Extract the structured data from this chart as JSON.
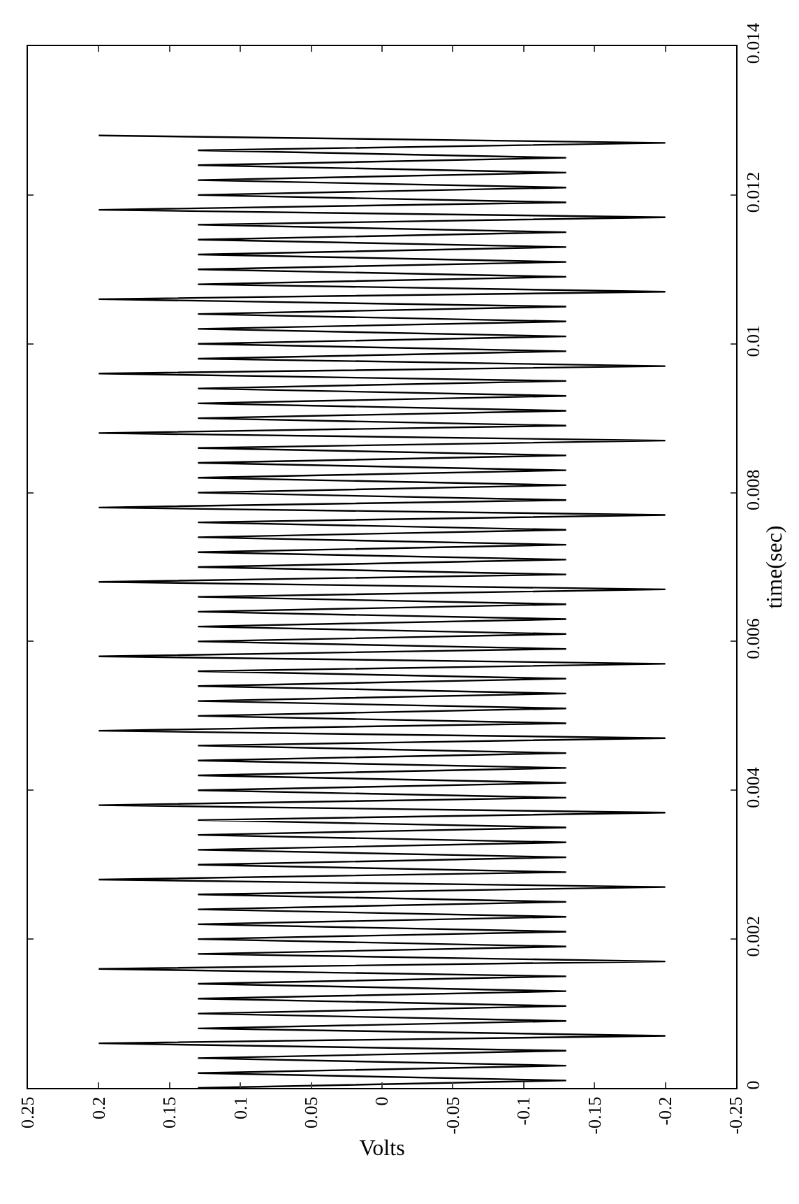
{
  "chart_data": {
    "type": "line",
    "xlabel": "Volts",
    "ylabel": "time(sec)",
    "values": [
      0,
      0.0001,
      0.0002,
      0.0003,
      0.0004,
      0.0005,
      0.0006,
      0.0007,
      0.0008,
      0.0009,
      0.001,
      0.0011,
      0.0012,
      0.0013,
      0.0014,
      0.0015,
      0.0016,
      0.0017,
      0.0018,
      0.0019,
      0.002,
      0.0021,
      0.0022,
      0.0023,
      0.0024,
      0.0025,
      0.0026,
      0.0027,
      0.0028,
      0.0029,
      0.003,
      0.0031,
      0.0032,
      0.0033,
      0.0034,
      0.0035,
      0.0036,
      0.0037,
      0.0038,
      0.0039,
      0.004,
      0.0041,
      0.0042,
      0.0043,
      0.0044,
      0.0045,
      0.0046,
      0.0047,
      0.0048,
      0.0049,
      0.005,
      0.0051,
      0.0052,
      0.0053,
      0.0054,
      0.0055,
      0.0056,
      0.0057,
      0.0058,
      0.0059,
      0.006,
      0.0061,
      0.0062,
      0.0063,
      0.0064,
      0.0065,
      0.0066,
      0.0067,
      0.0068,
      0.0069,
      0.007,
      0.0071,
      0.0072,
      0.0073,
      0.0074,
      0.0075,
      0.0076,
      0.0077,
      0.0078,
      0.0079,
      0.008,
      0.0081,
      0.0082,
      0.0083,
      0.0084,
      0.0085,
      0.0086,
      0.0087,
      0.0088,
      0.0089,
      0.009,
      0.0091,
      0.0092,
      0.0093,
      0.0094,
      0.0095,
      0.0096,
      0.0097,
      0.0098,
      0.0099,
      0.01,
      0.0101,
      0.0102,
      0.0103,
      0.0104,
      0.0105,
      0.0106,
      0.0107,
      0.0108,
      0.0109,
      0.011,
      0.0111,
      0.0112,
      0.0113,
      0.0114,
      0.0115,
      0.0116,
      0.0117,
      0.0118,
      0.0119,
      0.012,
      0.0121,
      0.0122,
      0.0123,
      0.0124,
      0.0125,
      0.0126,
      0.0127,
      0.0128
    ],
    "x": [
      0.13,
      -0.13,
      0.13,
      -0.13,
      0.13,
      -0.13,
      0.2,
      -0.2,
      0.13,
      -0.13,
      0.13,
      -0.13,
      0.13,
      -0.13,
      0.13,
      -0.13,
      0.2,
      -0.2,
      0.13,
      -0.13,
      0.13,
      -0.13,
      0.13,
      -0.13,
      0.13,
      -0.13,
      0.13,
      -0.2,
      0.2,
      -0.13,
      0.13,
      -0.13,
      0.13,
      -0.13,
      0.13,
      -0.13,
      0.13,
      -0.2,
      0.2,
      -0.13,
      0.13,
      -0.13,
      0.13,
      -0.13,
      0.13,
      -0.13,
      0.13,
      -0.2,
      0.2,
      -0.13,
      0.13,
      -0.13,
      0.13,
      -0.13,
      0.13,
      -0.13,
      0.13,
      -0.2,
      0.2,
      -0.13,
      0.13,
      -0.13,
      0.13,
      -0.13,
      0.13,
      -0.13,
      0.13,
      -0.2,
      0.2,
      -0.13,
      0.13,
      -0.13,
      0.13,
      -0.13,
      0.13,
      -0.13,
      0.13,
      -0.2,
      0.2,
      -0.13,
      0.13,
      -0.13,
      0.13,
      -0.13,
      0.13,
      -0.13,
      0.13,
      -0.2,
      0.2,
      -0.13,
      0.13,
      -0.13,
      0.13,
      -0.13,
      0.13,
      -0.13,
      0.2,
      -0.2,
      0.13,
      -0.13,
      0.13,
      -0.13,
      0.13,
      -0.13,
      0.13,
      -0.13,
      0.2,
      -0.2,
      0.13,
      -0.13,
      0.13,
      -0.13,
      0.13,
      -0.13,
      0.13,
      -0.13,
      0.13,
      -0.2,
      0.2,
      -0.13,
      0.13,
      -0.13,
      0.13,
      -0.13,
      0.13,
      -0.13,
      0.13,
      -0.2,
      0.2
    ],
    "color": "#000000",
    "xlim": [
      0.25,
      -0.25
    ],
    "xticks": [
      0.25,
      0.2,
      0.15,
      0.1,
      0.05,
      0,
      -0.05,
      -0.1,
      -0.15,
      -0.2,
      -0.25
    ],
    "ylim": [
      0,
      0.014
    ],
    "yticks": [
      0,
      0.002,
      0.004,
      0.006,
      0.008,
      0.01,
      0.012,
      0.014
    ],
    "grid": false,
    "marker": "none",
    "line_style": "solid"
  }
}
